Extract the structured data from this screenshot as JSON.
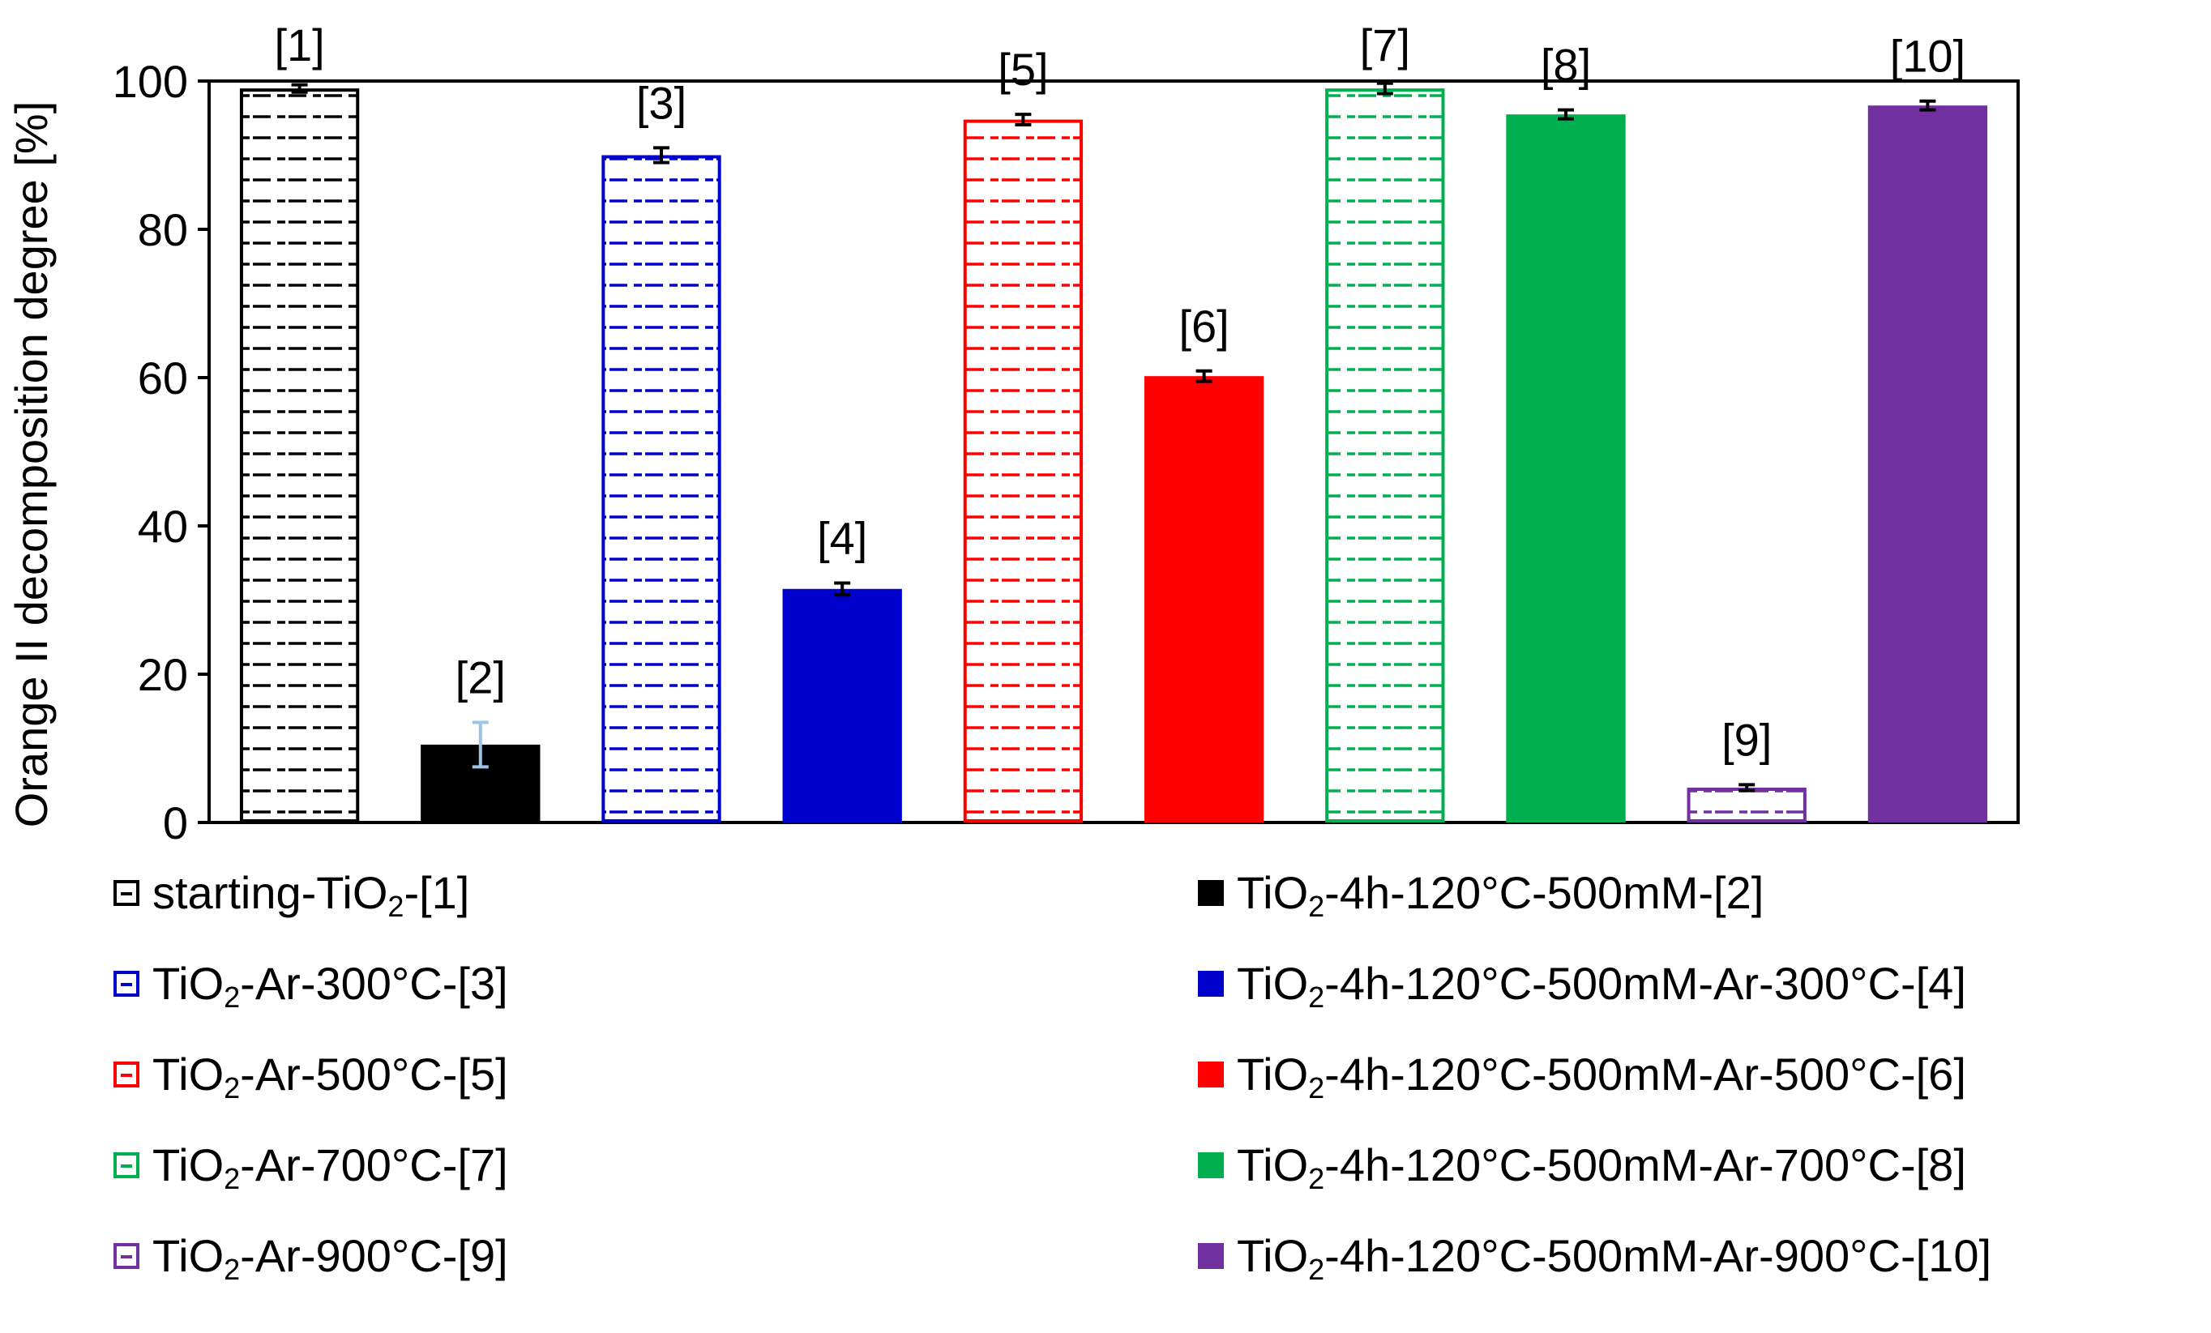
{
  "chart_data": {
    "type": "bar",
    "title": "",
    "xlabel": "",
    "ylabel": "Orange II decomposition degree [%]",
    "ylim": [
      0,
      100
    ],
    "yticks": [
      0,
      20,
      40,
      60,
      80,
      100
    ],
    "grid": false,
    "legend_position": "bottom",
    "bars": [
      {
        "label": "[1]",
        "value": 99.0,
        "error": 0.5,
        "color": "#000000",
        "pattern": "hatched",
        "error_color": "#000000"
      },
      {
        "label": "[2]",
        "value": 10.5,
        "error": 3.0,
        "color": "#000000",
        "pattern": "solid",
        "error_color": "#9dc3e6"
      },
      {
        "label": "[3]",
        "value": 90.0,
        "error": 1.0,
        "color": "#0000cc",
        "pattern": "hatched",
        "error_color": "#000000"
      },
      {
        "label": "[4]",
        "value": 31.5,
        "error": 0.8,
        "color": "#0000cc",
        "pattern": "solid",
        "error_color": "#000000"
      },
      {
        "label": "[5]",
        "value": 94.8,
        "error": 0.7,
        "color": "#ff0000",
        "pattern": "hatched",
        "error_color": "#000000"
      },
      {
        "label": "[6]",
        "value": 60.2,
        "error": 0.7,
        "color": "#ff0000",
        "pattern": "solid",
        "error_color": "#000000"
      },
      {
        "label": "[7]",
        "value": 99.0,
        "error": 0.7,
        "color": "#00b050",
        "pattern": "hatched",
        "error_color": "#000000"
      },
      {
        "label": "[8]",
        "value": 95.5,
        "error": 0.6,
        "color": "#00b050",
        "pattern": "solid",
        "error_color": "#000000"
      },
      {
        "label": "[9]",
        "value": 4.7,
        "error": 0.4,
        "color": "#7030a0",
        "pattern": "hatched",
        "error_color": "#000000"
      },
      {
        "label": "[10]",
        "value": 96.7,
        "error": 0.6,
        "color": "#7030a0",
        "pattern": "solid",
        "error_color": "#000000"
      }
    ]
  },
  "legend": {
    "left": [
      {
        "pre": "starting-TiO",
        "sub": "2",
        "post": "-[1]",
        "color": "#000000",
        "pattern": "hatched"
      },
      {
        "pre": "TiO",
        "sub": "2",
        "post": "-Ar-300°C-[3]",
        "color": "#0000cc",
        "pattern": "hatched"
      },
      {
        "pre": "TiO",
        "sub": "2",
        "post": "-Ar-500°C-[5]",
        "color": "#ff0000",
        "pattern": "hatched"
      },
      {
        "pre": "TiO",
        "sub": "2",
        "post": "-Ar-700°C-[7]",
        "color": "#00b050",
        "pattern": "hatched"
      },
      {
        "pre": "TiO",
        "sub": "2",
        "post": "-Ar-900°C-[9]",
        "color": "#7030a0",
        "pattern": "hatched"
      }
    ],
    "right": [
      {
        "pre": "TiO",
        "sub": "2",
        "post": "-4h-120°C-500mM-[2]",
        "color": "#000000",
        "pattern": "solid"
      },
      {
        "pre": "TiO",
        "sub": "2",
        "post": "-4h-120°C-500mM-Ar-300°C-[4]",
        "color": "#0000cc",
        "pattern": "solid"
      },
      {
        "pre": "TiO",
        "sub": "2",
        "post": "-4h-120°C-500mM-Ar-500°C-[6]",
        "color": "#ff0000",
        "pattern": "solid"
      },
      {
        "pre": "TiO",
        "sub": "2",
        "post": "-4h-120°C-500mM-Ar-700°C-[8]",
        "color": "#00b050",
        "pattern": "solid"
      },
      {
        "pre": "TiO",
        "sub": "2",
        "post": "-4h-120°C-500mM-Ar-900°C-[10]",
        "color": "#7030a0",
        "pattern": "solid"
      }
    ]
  }
}
